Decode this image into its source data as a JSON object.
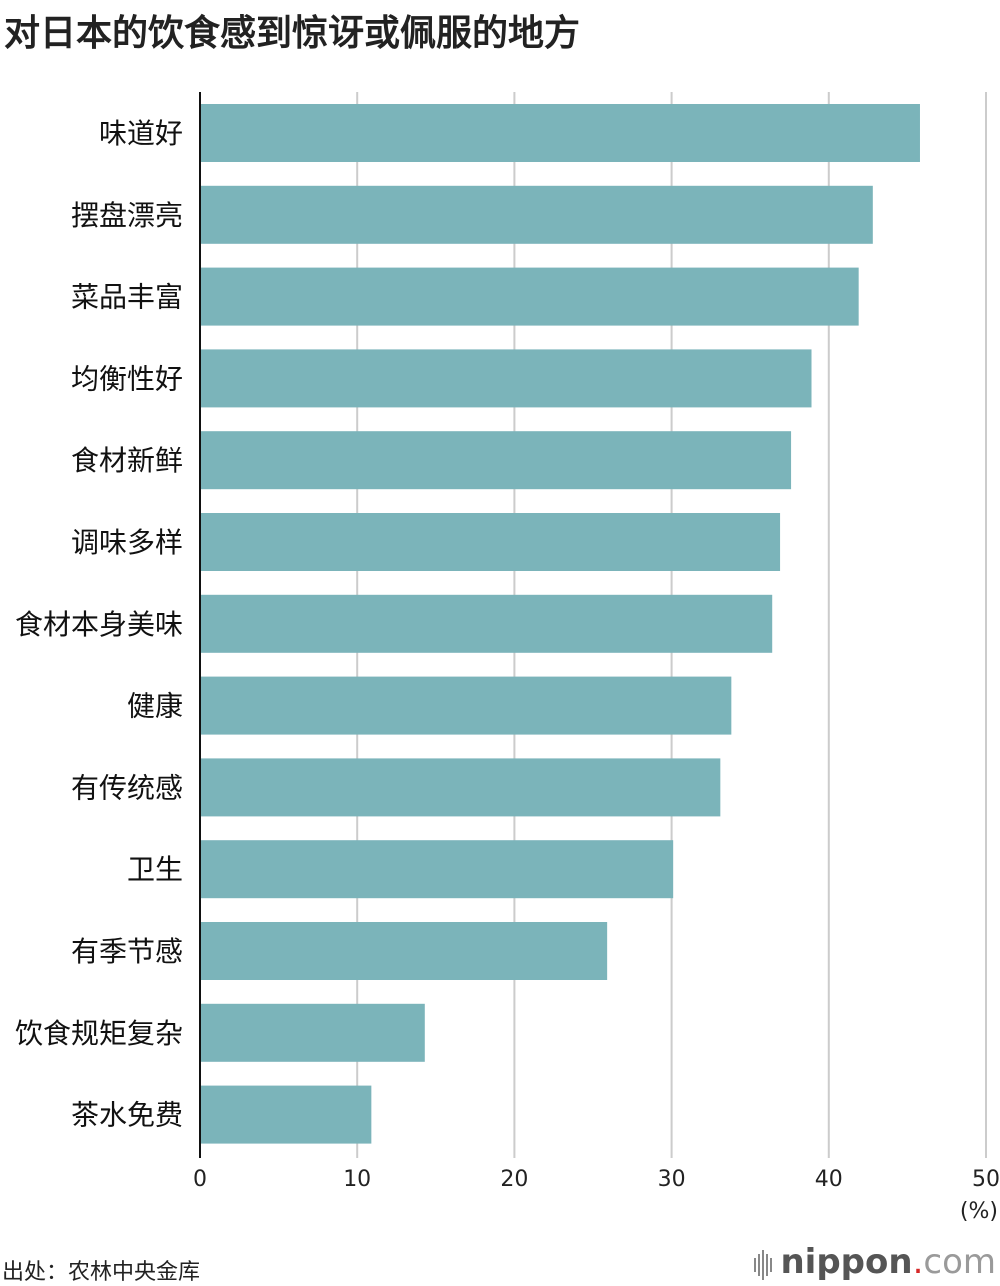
{
  "chart_data": {
    "type": "bar",
    "orientation": "horizontal",
    "title": "对日本的饮食感到惊讶或佩服的地方",
    "categories": [
      "味道好",
      "摆盘漂亮",
      "菜品丰富",
      "均衡性好",
      "食材新鲜",
      "调味多样",
      "食材本身美味",
      "健康",
      "有传统感",
      "卫生",
      "有季节感",
      "饮食规矩复杂",
      "茶水免费"
    ],
    "values": [
      45.8,
      42.8,
      41.9,
      38.9,
      37.6,
      36.9,
      36.4,
      33.8,
      33.1,
      30.1,
      25.9,
      14.3,
      10.9
    ],
    "xlim": [
      0,
      50
    ],
    "xticks": [
      "0",
      "10",
      "20",
      "30",
      "40",
      "50"
    ],
    "unit": "(%)",
    "grid": true,
    "bar_color": "#7bb4ba"
  },
  "source": "出处：农林中央金库",
  "brand": {
    "name": "nippon",
    "dot": ".",
    "suffix": "com"
  }
}
